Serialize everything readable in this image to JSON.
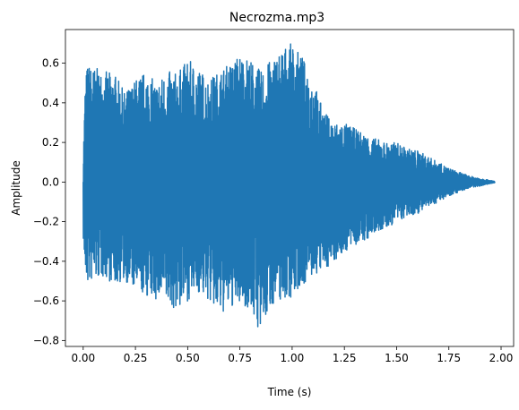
{
  "chart_data": {
    "type": "line",
    "title": "Necrozma.mp3",
    "xlabel": "Time (s)",
    "ylabel": "Amplitude",
    "xlim": [
      -0.085,
      2.06
    ],
    "ylim": [
      -0.83,
      0.77
    ],
    "x_ticks": [
      0.0,
      0.25,
      0.5,
      0.75,
      1.0,
      1.25,
      1.5,
      1.75,
      2.0
    ],
    "x_tick_labels": [
      "0.00",
      "0.25",
      "0.50",
      "0.75",
      "1.00",
      "1.25",
      "1.50",
      "1.75",
      "2.00"
    ],
    "y_ticks": [
      -0.8,
      -0.6,
      -0.4,
      -0.2,
      0.0,
      0.2,
      0.4,
      0.6
    ],
    "y_tick_labels": [
      "−0.8",
      "−0.6",
      "−0.4",
      "−0.2",
      "0.0",
      "0.2",
      "0.4",
      "0.6"
    ],
    "grid": false,
    "legend": "none",
    "series": [
      {
        "color": "#1f77b4",
        "envelope": {
          "x": [
            0.0,
            0.01,
            0.02,
            0.05,
            0.1,
            0.15,
            0.2,
            0.25,
            0.3,
            0.35,
            0.4,
            0.45,
            0.5,
            0.55,
            0.6,
            0.65,
            0.7,
            0.75,
            0.8,
            0.85,
            0.9,
            0.95,
            1.0,
            1.05,
            1.1,
            1.15,
            1.2,
            1.25,
            1.3,
            1.35,
            1.4,
            1.45,
            1.5,
            1.55,
            1.6,
            1.65,
            1.7,
            1.75,
            1.8,
            1.85,
            1.9,
            1.95,
            1.97
          ],
          "upper": [
            0.12,
            0.52,
            0.6,
            0.58,
            0.56,
            0.55,
            0.45,
            0.52,
            0.56,
            0.5,
            0.56,
            0.55,
            0.62,
            0.58,
            0.52,
            0.56,
            0.6,
            0.65,
            0.62,
            0.56,
            0.62,
            0.68,
            0.7,
            0.63,
            0.52,
            0.36,
            0.3,
            0.3,
            0.27,
            0.24,
            0.22,
            0.2,
            0.2,
            0.17,
            0.16,
            0.13,
            0.1,
            0.07,
            0.05,
            0.03,
            0.02,
            0.008,
            0.004
          ],
          "lower": [
            -0.28,
            -0.5,
            -0.52,
            -0.5,
            -0.48,
            -0.52,
            -0.5,
            -0.55,
            -0.58,
            -0.6,
            -0.62,
            -0.65,
            -0.6,
            -0.56,
            -0.6,
            -0.68,
            -0.64,
            -0.62,
            -0.64,
            -0.78,
            -0.62,
            -0.6,
            -0.58,
            -0.52,
            -0.48,
            -0.45,
            -0.4,
            -0.36,
            -0.32,
            -0.3,
            -0.26,
            -0.24,
            -0.2,
            -0.18,
            -0.16,
            -0.13,
            -0.1,
            -0.07,
            -0.05,
            -0.03,
            -0.02,
            -0.008,
            -0.004
          ]
        }
      }
    ]
  }
}
